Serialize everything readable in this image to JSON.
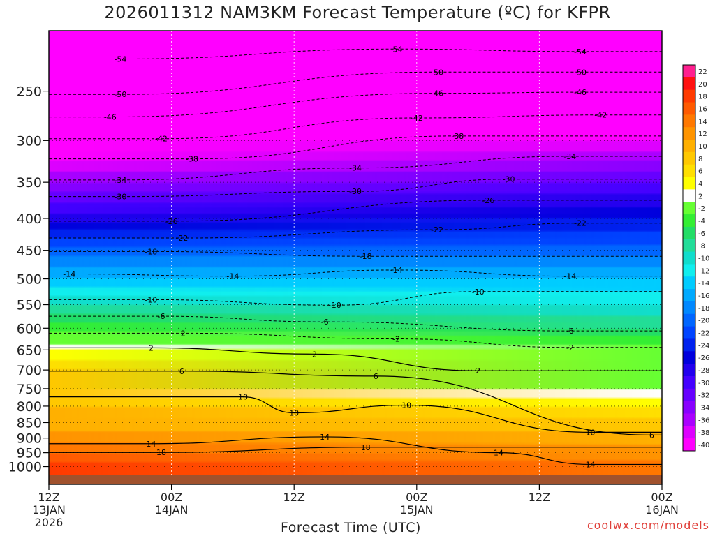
{
  "title": "2026011312 NAM3KM Forecast Temperature (ºC) for KFPR",
  "credit": "coolwx.com/models",
  "chart_data": {
    "type": "heatmap",
    "title": "2026011312 NAM3KM Forecast Temperature (ºC) for KFPR",
    "xlabel": "Forecast Time (UTC)",
    "ylabel": "",
    "y_scale": "log",
    "x_ticks": [
      {
        "label": "12Z",
        "label2": "13JAN",
        "label3": "2026",
        "hour": 0
      },
      {
        "label": "00Z",
        "label2": "14JAN",
        "label3": "",
        "hour": 12
      },
      {
        "label": "12Z",
        "label2": "",
        "label3": "",
        "hour": 24
      },
      {
        "label": "00Z",
        "label2": "15JAN",
        "label3": "",
        "hour": 36
      },
      {
        "label": "12Z",
        "label2": "",
        "label3": "",
        "hour": 48
      },
      {
        "label": "00Z",
        "label2": "16JAN",
        "label3": "",
        "hour": 60
      }
    ],
    "x_range_hours": [
      0,
      60
    ],
    "y_ticks": [
      250,
      300,
      350,
      400,
      450,
      500,
      550,
      600,
      650,
      700,
      750,
      800,
      850,
      900,
      950,
      1000
    ],
    "y_range_hpa": [
      200,
      1030
    ],
    "colorbar_labels": [
      "22",
      "20",
      "18",
      "16",
      "14",
      "12",
      "10",
      "8",
      "6",
      "4",
      "2",
      "-2",
      "-4",
      "-6",
      "-8",
      "-10",
      "-12",
      "-14",
      "-16",
      "-18",
      "-20",
      "-22",
      "-24",
      "-26",
      "-28",
      "-30",
      "-32",
      "-34",
      "-36",
      "-38",
      "-40"
    ],
    "colorbar_colors": [
      "#ff1f8f",
      "#ff1010",
      "#ff3b00",
      "#ff5a00",
      "#ff7800",
      "#ff9400",
      "#ffb000",
      "#ffc800",
      "#ffdf00",
      "#ffff00",
      "#ffffff",
      "#66ff33",
      "#33ee33",
      "#22dd66",
      "#22dd99",
      "#11ddcc",
      "#11eeee",
      "#00ccff",
      "#00aaff",
      "#0088ff",
      "#0066ff",
      "#0044ff",
      "#0022ee",
      "#0000dd",
      "#2200ee",
      "#4400ff",
      "#6600ff",
      "#8800ff",
      "#aa00ff",
      "#dd00ff",
      "#ff00ff"
    ],
    "profile_pressure_hpa": [
      200,
      250,
      300,
      350,
      400,
      450,
      500,
      550,
      600,
      650,
      700,
      750,
      800,
      850,
      900,
      950,
      1000
    ],
    "profile_temp_at_0h": [
      -56,
      -50,
      -42,
      -34,
      -27,
      -19,
      -14,
      -8,
      -3,
      4,
      8,
      9,
      10,
      11,
      13,
      16,
      19
    ],
    "profile_temp_at_60h": [
      -56,
      -46,
      -38,
      -30,
      -24,
      -19,
      -14,
      -10,
      -6,
      -1,
      1,
      2,
      6,
      9,
      11,
      13,
      15
    ],
    "dashed_isotherms": [
      {
        "label": "-54",
        "hour": 7,
        "hpa": 222
      },
      {
        "label": "-54",
        "hour": 34,
        "hpa": 214
      },
      {
        "label": "-54",
        "hour": 52,
        "hpa": 216
      },
      {
        "label": "-50",
        "hour": 7,
        "hpa": 253
      },
      {
        "label": "-50",
        "hour": 38,
        "hpa": 233
      },
      {
        "label": "-50",
        "hour": 52,
        "hpa": 233
      },
      {
        "label": "-46",
        "hour": 6,
        "hpa": 275
      },
      {
        "label": "-46",
        "hour": 38,
        "hpa": 252
      },
      {
        "label": "-46",
        "hour": 52,
        "hpa": 251
      },
      {
        "label": "-42",
        "hour": 11,
        "hpa": 298
      },
      {
        "label": "-42",
        "hour": 36,
        "hpa": 276
      },
      {
        "label": "-42",
        "hour": 54,
        "hpa": 273
      },
      {
        "label": "-38",
        "hour": 14,
        "hpa": 321
      },
      {
        "label": "-38",
        "hour": 40,
        "hpa": 295
      },
      {
        "label": "-34",
        "hour": 7,
        "hpa": 347
      },
      {
        "label": "-34",
        "hour": 30,
        "hpa": 332
      },
      {
        "label": "-34",
        "hour": 51,
        "hpa": 318
      },
      {
        "label": "-30",
        "hour": 7,
        "hpa": 369
      },
      {
        "label": "-30",
        "hour": 30,
        "hpa": 362
      },
      {
        "label": "-30",
        "hour": 45,
        "hpa": 346
      },
      {
        "label": "-26",
        "hour": 12,
        "hpa": 404
      },
      {
        "label": "-26",
        "hour": 43,
        "hpa": 374
      },
      {
        "label": "-22",
        "hour": 13,
        "hpa": 430
      },
      {
        "label": "-22",
        "hour": 38,
        "hpa": 417
      },
      {
        "label": "-22",
        "hour": 52,
        "hpa": 407
      },
      {
        "label": "-18",
        "hour": 10,
        "hpa": 452
      },
      {
        "label": "-18",
        "hour": 31,
        "hpa": 460
      },
      {
        "label": "-14",
        "hour": 2,
        "hpa": 491
      },
      {
        "label": "-14",
        "hour": 18,
        "hpa": 495
      },
      {
        "label": "-14",
        "hour": 34,
        "hpa": 484
      },
      {
        "label": "-14",
        "hour": 51,
        "hpa": 495
      },
      {
        "label": "-10",
        "hour": 10,
        "hpa": 540
      },
      {
        "label": "-10",
        "hour": 28,
        "hpa": 551
      },
      {
        "label": "-10",
        "hour": 42,
        "hpa": 524
      },
      {
        "label": "-6",
        "hour": 11,
        "hpa": 574
      },
      {
        "label": "-6",
        "hour": 27,
        "hpa": 586
      },
      {
        "label": "-6",
        "hour": 51,
        "hpa": 606
      },
      {
        "label": "-2",
        "hour": 13,
        "hpa": 611
      },
      {
        "label": "-2",
        "hour": 34,
        "hpa": 624
      },
      {
        "label": "-2",
        "hour": 51,
        "hpa": 644
      }
    ],
    "solid_isotherms": [
      {
        "label": "2",
        "hour": 10,
        "hpa": 645
      },
      {
        "label": "2",
        "hour": 26,
        "hpa": 660
      },
      {
        "label": "2",
        "hour": 42,
        "hpa": 702
      },
      {
        "label": "6",
        "hour": 13,
        "hpa": 703
      },
      {
        "label": "6",
        "hour": 32,
        "hpa": 716
      },
      {
        "label": "6",
        "hour": 59,
        "hpa": 890
      },
      {
        "label": "10",
        "hour": 19,
        "hpa": 773
      },
      {
        "label": "10",
        "hour": 24,
        "hpa": 820
      },
      {
        "label": "10",
        "hour": 35,
        "hpa": 797
      },
      {
        "label": "10",
        "hour": 53,
        "hpa": 881
      },
      {
        "label": "14",
        "hour": 10,
        "hpa": 919
      },
      {
        "label": "14",
        "hour": 27,
        "hpa": 896
      },
      {
        "label": "14",
        "hour": 44,
        "hpa": 950
      },
      {
        "label": "14",
        "hour": 53,
        "hpa": 992
      },
      {
        "label": "18",
        "hour": 11,
        "hpa": 949
      },
      {
        "label": "18",
        "hour": 31,
        "hpa": 931
      }
    ]
  }
}
